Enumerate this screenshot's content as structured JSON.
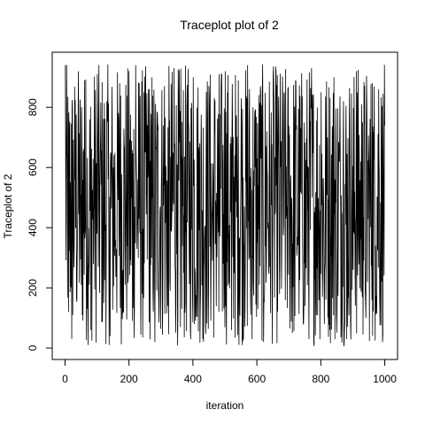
{
  "chart_data": {
    "type": "line",
    "title": "Traceplot plot of 2",
    "xlabel": "iteration",
    "ylabel": "Traceplot of 2",
    "xlim": [
      -40,
      1040
    ],
    "ylim": [
      -38,
      983
    ],
    "xticks": [
      0,
      200,
      400,
      600,
      800,
      1000
    ],
    "xtick_labels": [
      "0",
      "200",
      "400",
      "600",
      "800",
      "1000"
    ],
    "yticks": [
      0,
      200,
      400,
      600,
      800
    ],
    "ytick_labels": [
      "0",
      "200",
      "400",
      "600",
      "800"
    ],
    "grid": false,
    "legend": "none",
    "series": [
      {
        "n": 1000,
        "min": 0,
        "max": 945,
        "color": "#000000",
        "description_of_values": "trace of 1000 MCMC iterations fluctuating roughly uniformly between about 5 and 945",
        "values_sample_every_10": [
          940,
          120,
          30,
          560,
          780,
          210,
          890,
          350,
          60,
          470,
          910,
          700,
          150,
          820,
          40,
          600,
          330,
          880,
          260,
          510,
          720,
          90,
          940,
          430,
          180,
          650,
          860,
          300,
          20,
          740,
          520,
          870,
          140,
          390,
          930,
          610,
          70,
          250,
          800,
          450,
          900,
          160,
          680,
          30,
          570,
          840,
          290,
          490,
          120,
          760,
          920,
          380,
          60,
          640,
          210,
          830,
          470,
          940,
          110,
          590,
          350,
          870,
          20,
          720,
          270,
          910,
          540,
          180,
          810,
          430,
          660,
          50,
          890,
          310,
          770,
          140,
          600,
          930,
          230,
          480,
          850,
          80,
          700,
          370,
          900,
          160,
          560,
          820,
          30,
          640,
          260,
          920,
          410,
          750,
          100,
          580,
          880,
          340,
          860,
          520
        ]
      }
    ]
  }
}
